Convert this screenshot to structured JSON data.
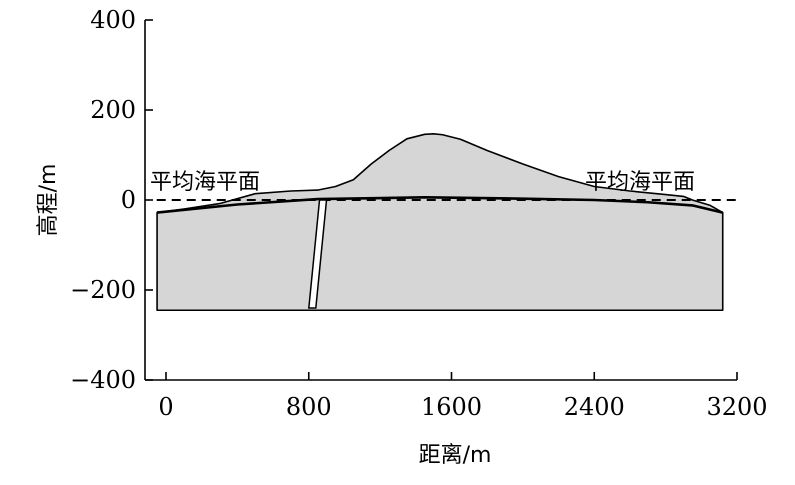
{
  "figure": {
    "xlabel": "距离/m",
    "ylabel": "高程/m",
    "sea_level_label_left": "平均海平面",
    "sea_level_label_right": "平均海平面",
    "fill_color": "#d6d6d6",
    "line_color": "#000000"
  },
  "chart_data": {
    "type": "area",
    "xlabel": "距离/m",
    "ylabel": "高程/m",
    "xlim": [
      -80,
      3200
    ],
    "ylim": [
      -400,
      400
    ],
    "x_ticks": [
      0,
      800,
      1600,
      2400,
      3200
    ],
    "x_tick_labels": [
      "0",
      "800",
      "1600",
      "2400",
      "3200"
    ],
    "y_ticks": [
      400,
      200,
      0,
      -200,
      -400
    ],
    "y_tick_labels": [
      "400",
      "200",
      "0",
      "−200",
      "−400"
    ],
    "mean_sea_level": 0,
    "model_bottom": -245,
    "model_x_range": [
      -50,
      3120
    ],
    "terrain_profile": {
      "x": [
        -50,
        100,
        300,
        500,
        700,
        850,
        950,
        1050,
        1150,
        1250,
        1350,
        1450,
        1500,
        1550,
        1650,
        1800,
        2000,
        2200,
        2400,
        2600,
        2800,
        2900,
        2950,
        3050,
        3120
      ],
      "y": [
        -28,
        -20,
        -8,
        14,
        20,
        22,
        30,
        45,
        80,
        110,
        136,
        146,
        147,
        145,
        135,
        110,
        80,
        52,
        30,
        20,
        12,
        8,
        0,
        -12,
        -28
      ]
    },
    "interface": {
      "x": [
        -50,
        400,
        850,
        1450,
        2000,
        2400,
        2700,
        2950,
        3120
      ],
      "y": [
        -28,
        -10,
        2,
        6,
        3,
        0,
        -5,
        -12,
        -28
      ]
    },
    "fault": {
      "top": [
        880,
        0
      ],
      "bottom": [
        820,
        -240
      ]
    }
  }
}
